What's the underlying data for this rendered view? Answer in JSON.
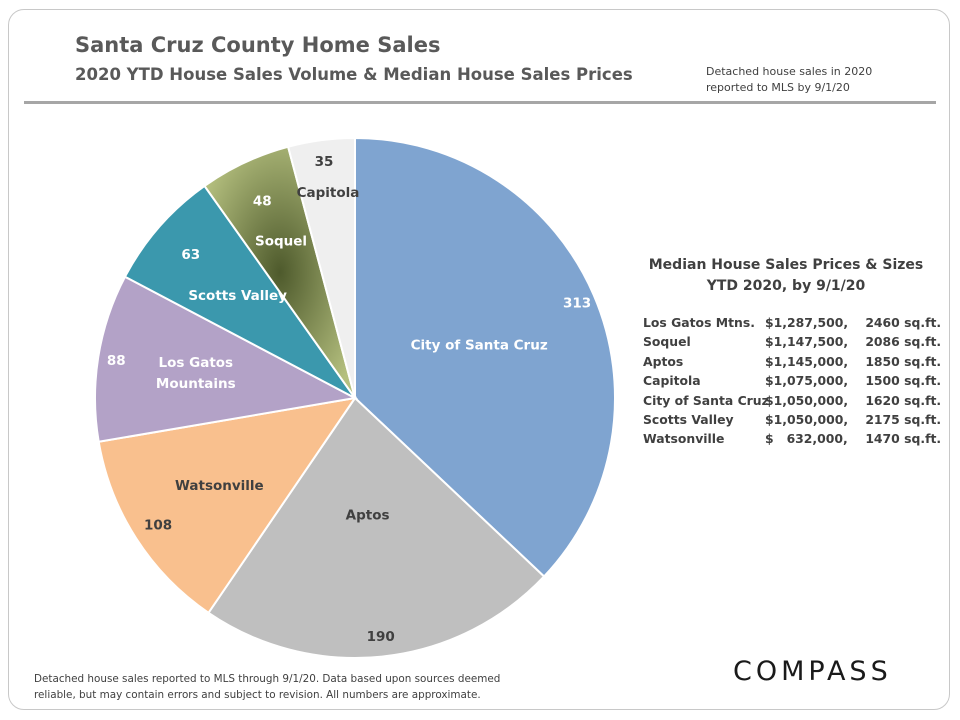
{
  "header": {
    "title": "Santa Cruz County Home Sales",
    "subtitle": "2020 YTD House Sales Volume & Median House Sales Prices",
    "note_line1": "Detached house sales in 2020",
    "note_line2": "reported to MLS by 9/1/20"
  },
  "chart_data": {
    "type": "pie",
    "title": "2020 YTD House Sales Volume & Median House Sales Prices",
    "slices": [
      {
        "label": "City of Santa Cruz",
        "label_lines": [
          "City of Santa Cruz"
        ],
        "value": 313,
        "color": "#7fa4d0"
      },
      {
        "label": "Aptos",
        "label_lines": [
          "Aptos"
        ],
        "value": 190,
        "color": "#bfbfbf"
      },
      {
        "label": "Watsonville",
        "label_lines": [
          "Watsonville"
        ],
        "value": 108,
        "color": "#f9c08e"
      },
      {
        "label": "Los Gatos Mountains",
        "label_lines": [
          "Los Gatos",
          "Mountains"
        ],
        "value": 88,
        "color": "#b3a2c7"
      },
      {
        "label": "Scotts Valley",
        "label_lines": [
          "Scotts Valley"
        ],
        "value": 63,
        "color": "#3b98ad"
      },
      {
        "label": "Soquel",
        "label_lines": [
          "Soquel"
        ],
        "value": 48,
        "color": "#9aa56a"
      },
      {
        "label": "Capitola",
        "label_lines": [
          "Capitola"
        ],
        "value": 35,
        "color": "#efefef"
      }
    ]
  },
  "table": {
    "title_line1": "Median House Sales Prices & Sizes",
    "title_line2": "YTD 2020, by 9/1/20",
    "rows": [
      {
        "area": "Los Gatos Mtns.",
        "price": "$1,287,500,",
        "size": " 2460 sq.ft."
      },
      {
        "area": "Soquel",
        "price": "$1,147,500,",
        "size": " 2086 sq.ft."
      },
      {
        "area": "Aptos",
        "price": "$1,145,000,",
        "size": " 1850 sq.ft."
      },
      {
        "area": "Capitola",
        "price": "$1,075,000,",
        "size": " 1500 sq.ft."
      },
      {
        "area": "City of Santa Cruz",
        "price": "$1,050,000,",
        "size": " 1620 sq.ft."
      },
      {
        "area": "Scotts Valley",
        "price": "$1,050,000,",
        "size": " 2175 sq.ft."
      },
      {
        "area": "Watsonville",
        "price": "$   632,000,",
        "size": " 1470 sq.ft."
      }
    ]
  },
  "footer": {
    "line1": "Detached house sales reported to MLS through 9/1/20. Data based upon sources deemed",
    "line2": "reliable, but may contain errors and subject to revision. All numbers are approximate.",
    "logo": "COMPASS"
  }
}
